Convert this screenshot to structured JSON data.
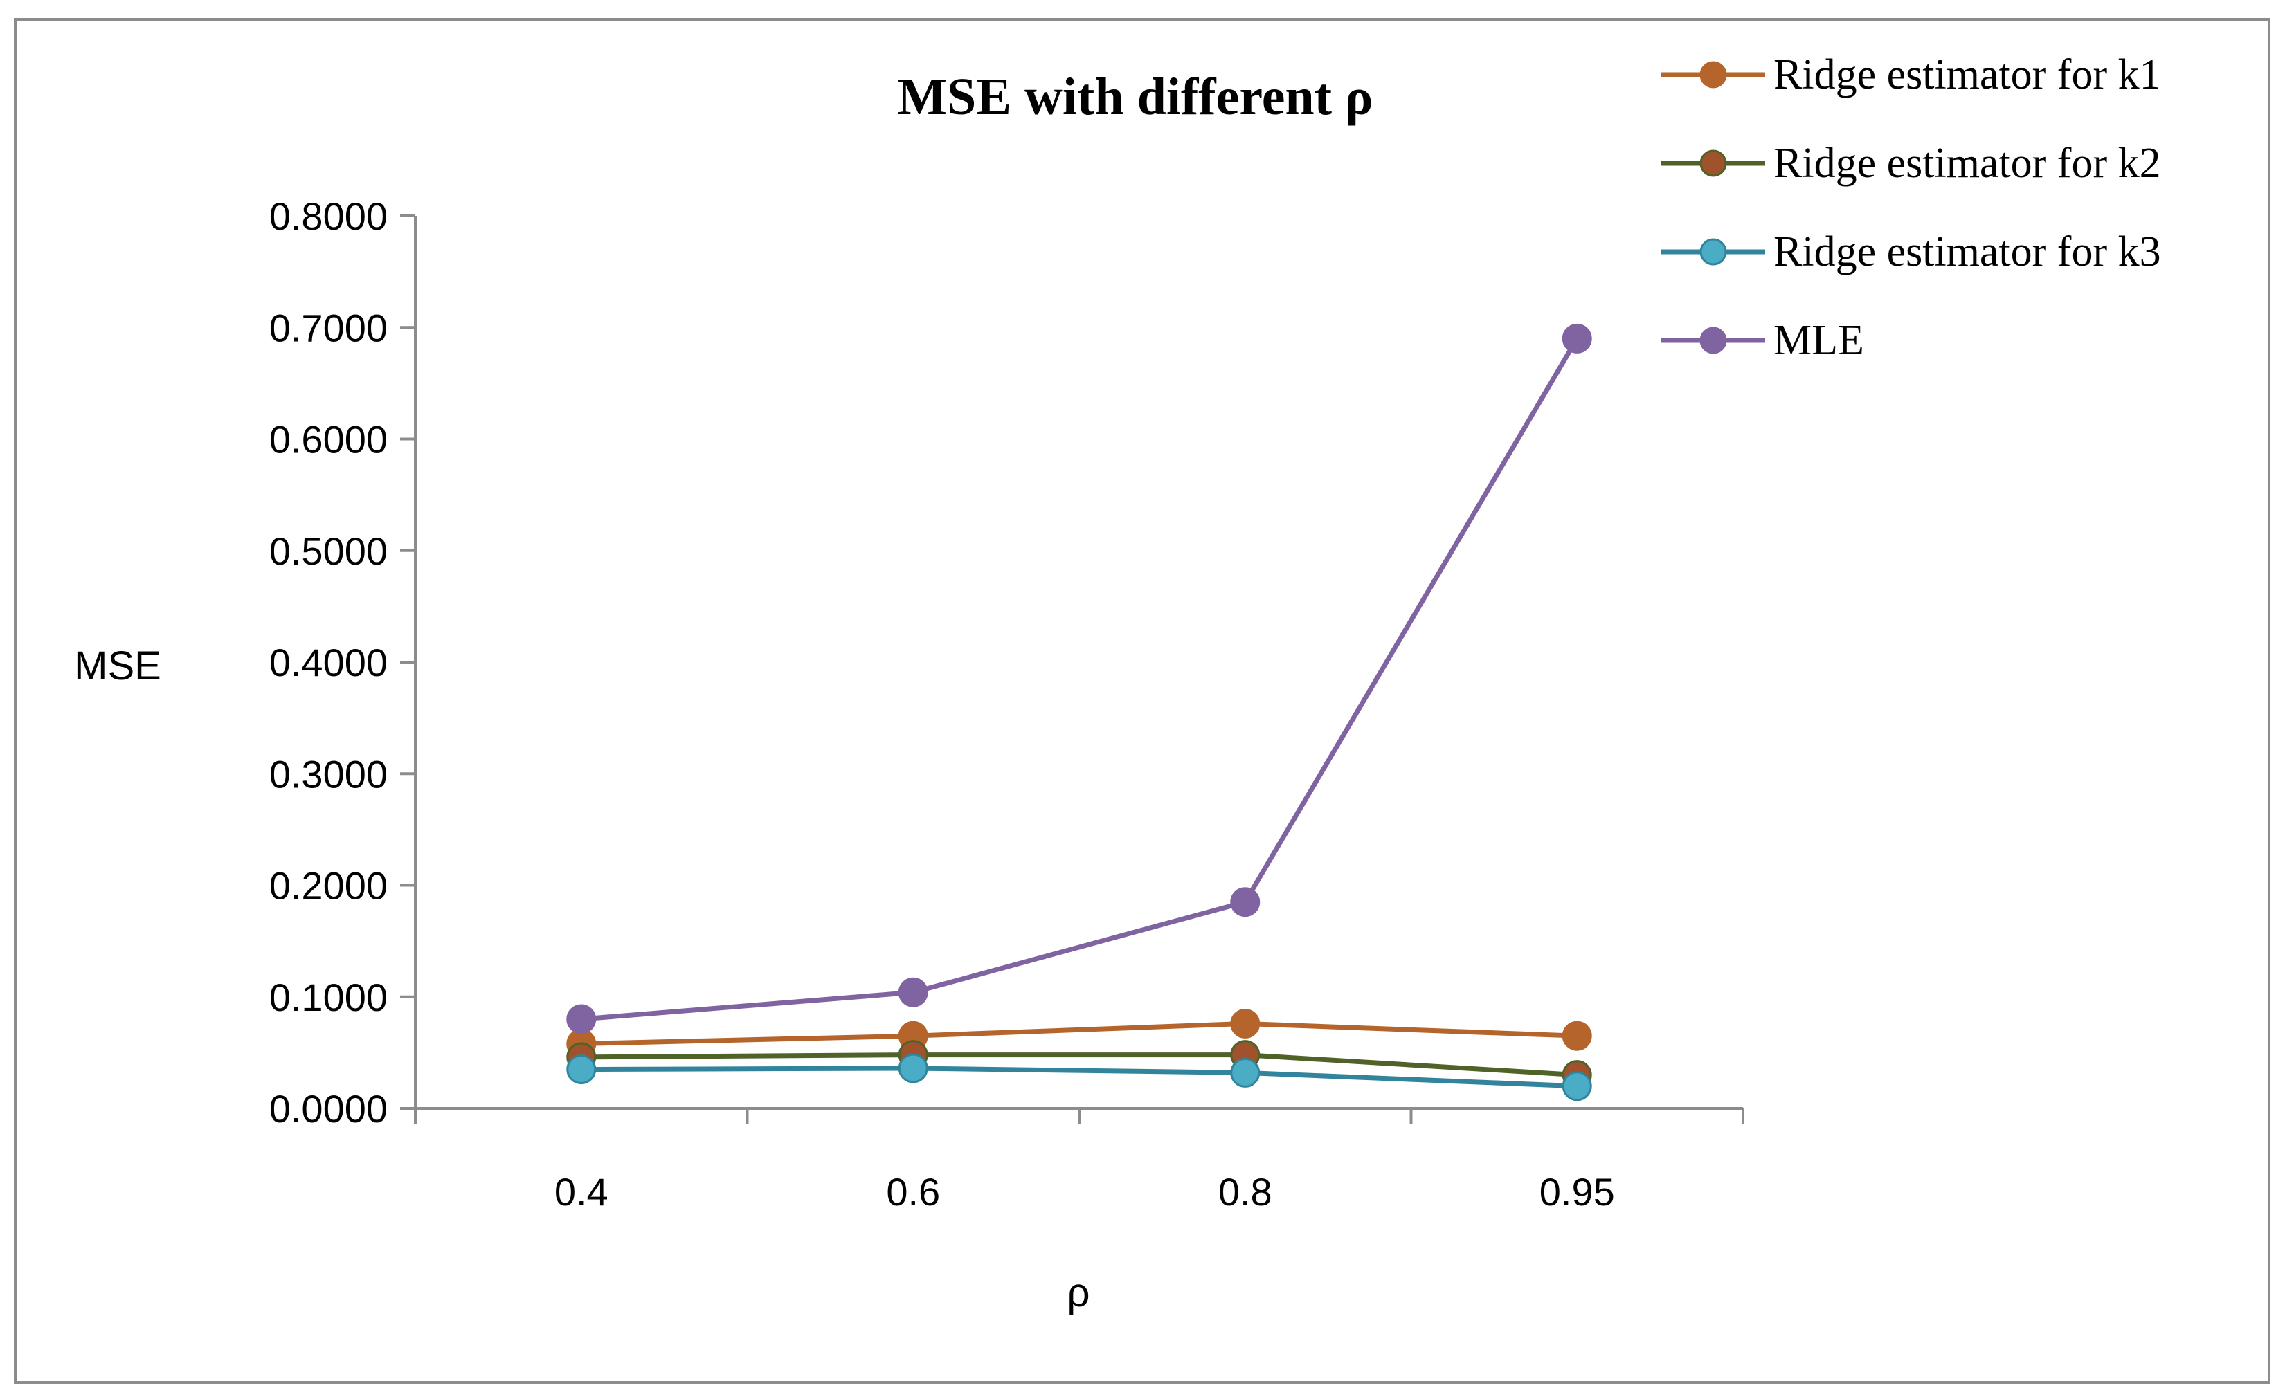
{
  "chart_data": {
    "type": "line",
    "title": "MSE with different ρ",
    "xlabel": "ρ",
    "ylabel": "MSE",
    "categories": [
      "0.4",
      "0.6",
      "0.8",
      "0.95"
    ],
    "y_ticks": [
      "0.0000",
      "0.1000",
      "0.2000",
      "0.3000",
      "0.4000",
      "0.5000",
      "0.6000",
      "0.7000",
      "0.8000"
    ],
    "ylim": [
      0,
      0.8
    ],
    "grid": false,
    "legend_position": "top-right",
    "series": [
      {
        "name": "Ridge estimator for k1",
        "values": [
          0.058,
          0.065,
          0.076,
          0.065
        ],
        "color": "#b5652b",
        "marker_color": "#b5652b"
      },
      {
        "name": "Ridge estimator for k2",
        "values": [
          0.046,
          0.048,
          0.048,
          0.03
        ],
        "color": "#4f6228",
        "marker_color": "#a0522d"
      },
      {
        "name": "Ridge estimator for k3",
        "values": [
          0.035,
          0.036,
          0.032,
          0.02
        ],
        "color": "#31849b",
        "marker_color": "#4bacc6"
      },
      {
        "name": "MLE",
        "values": [
          0.08,
          0.104,
          0.185,
          0.69
        ],
        "color": "#8064a2",
        "marker_color": "#8064a2"
      }
    ]
  }
}
